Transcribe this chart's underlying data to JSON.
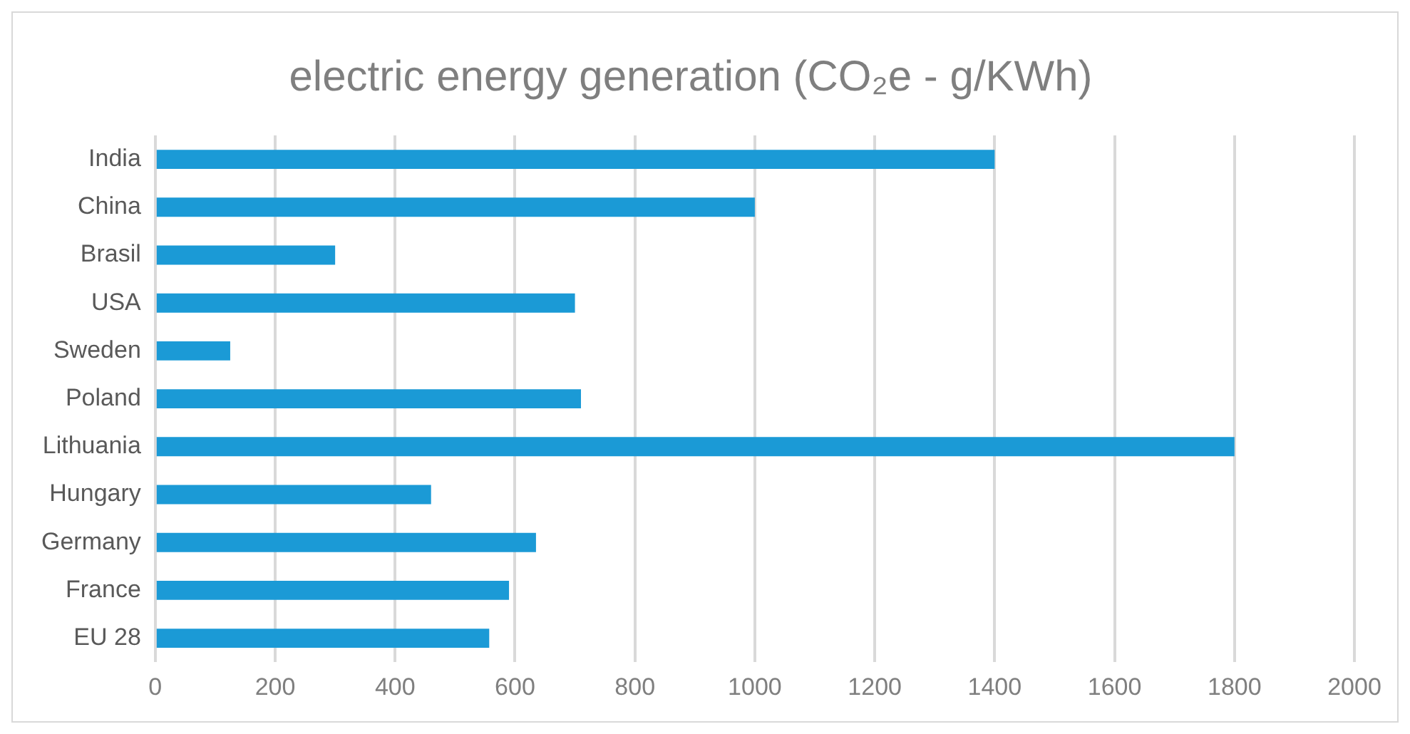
{
  "chart_data": {
    "type": "bar",
    "orientation": "horizontal",
    "title": "electric energy generation (CO₂e - g/KWh)",
    "categories": [
      "India",
      "China",
      "Brasil",
      "USA",
      "Sweden",
      "Poland",
      "Lithuania",
      "Hungary",
      "Germany",
      "France",
      "EU 28"
    ],
    "values": [
      1400,
      1000,
      300,
      700,
      125,
      710,
      1800,
      460,
      635,
      590,
      557
    ],
    "color": "#1b9ad6",
    "xlim": [
      0,
      2000
    ],
    "xticks": [
      0,
      200,
      400,
      600,
      800,
      1000,
      1200,
      1400,
      1600,
      1800,
      2000
    ],
    "grid": "x",
    "legend": false
  }
}
